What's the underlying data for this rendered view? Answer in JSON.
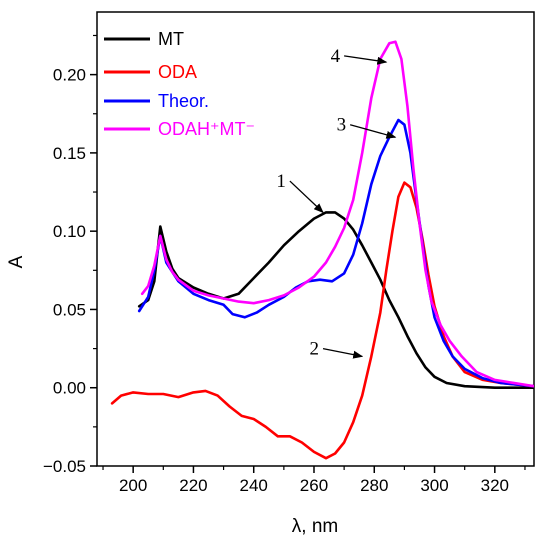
{
  "chart_data": {
    "type": "line",
    "title": "",
    "xlabel": "λ, nm",
    "ylabel": "A",
    "xlim": [
      188,
      333
    ],
    "ylim": [
      -0.05,
      0.24
    ],
    "x_ticks": [
      200,
      220,
      240,
      260,
      280,
      300,
      320
    ],
    "y_ticks": [
      -0.05,
      0.0,
      0.05,
      0.1,
      0.15,
      0.2
    ],
    "x_tick_labels": [
      "200",
      "220",
      "240",
      "260",
      "280",
      "300",
      "320"
    ],
    "y_tick_labels": [
      "−0.05",
      "0.00",
      "0.05",
      "0.10",
      "0.15",
      "0.20"
    ],
    "grid": false,
    "legend_position": "top-left",
    "series": [
      {
        "name": "MT",
        "color": "#000000",
        "points": [
          [
            202,
            0.052
          ],
          [
            205,
            0.056
          ],
          [
            207,
            0.068
          ],
          [
            209,
            0.103
          ],
          [
            211,
            0.087
          ],
          [
            213,
            0.076
          ],
          [
            215,
            0.07
          ],
          [
            220,
            0.064
          ],
          [
            225,
            0.06
          ],
          [
            230,
            0.057
          ],
          [
            235,
            0.06
          ],
          [
            240,
            0.07
          ],
          [
            245,
            0.08
          ],
          [
            250,
            0.091
          ],
          [
            255,
            0.1
          ],
          [
            260,
            0.108
          ],
          [
            264,
            0.112
          ],
          [
            267,
            0.112
          ],
          [
            270,
            0.108
          ],
          [
            273,
            0.101
          ],
          [
            276,
            0.091
          ],
          [
            279,
            0.08
          ],
          [
            282,
            0.069
          ],
          [
            285,
            0.056
          ],
          [
            288,
            0.045
          ],
          [
            291,
            0.033
          ],
          [
            294,
            0.022
          ],
          [
            297,
            0.013
          ],
          [
            300,
            0.007
          ],
          [
            304,
            0.003
          ],
          [
            310,
            0.001
          ],
          [
            320,
            0.0
          ],
          [
            333,
            0.0
          ]
        ]
      },
      {
        "name": "ODA",
        "color": "#ff0000",
        "points": [
          [
            193,
            -0.01
          ],
          [
            196,
            -0.005
          ],
          [
            200,
            -0.003
          ],
          [
            205,
            -0.004
          ],
          [
            210,
            -0.004
          ],
          [
            215,
            -0.006
          ],
          [
            220,
            -0.003
          ],
          [
            224,
            -0.002
          ],
          [
            228,
            -0.005
          ],
          [
            232,
            -0.012
          ],
          [
            236,
            -0.018
          ],
          [
            240,
            -0.02
          ],
          [
            244,
            -0.025
          ],
          [
            248,
            -0.031
          ],
          [
            252,
            -0.031
          ],
          [
            256,
            -0.035
          ],
          [
            260,
            -0.041
          ],
          [
            264,
            -0.045
          ],
          [
            267,
            -0.042
          ],
          [
            270,
            -0.035
          ],
          [
            273,
            -0.022
          ],
          [
            276,
            -0.005
          ],
          [
            279,
            0.02
          ],
          [
            282,
            0.048
          ],
          [
            284,
            0.075
          ],
          [
            286,
            0.1
          ],
          [
            288,
            0.122
          ],
          [
            290,
            0.131
          ],
          [
            292,
            0.128
          ],
          [
            294,
            0.115
          ],
          [
            296,
            0.095
          ],
          [
            298,
            0.072
          ],
          [
            300,
            0.052
          ],
          [
            303,
            0.033
          ],
          [
            306,
            0.02
          ],
          [
            310,
            0.01
          ],
          [
            316,
            0.005
          ],
          [
            322,
            0.003
          ],
          [
            333,
            0.001
          ]
        ]
      },
      {
        "name": "Theor.",
        "color": "#0000ff",
        "points": [
          [
            202,
            0.049
          ],
          [
            205,
            0.058
          ],
          [
            207,
            0.075
          ],
          [
            209,
            0.097
          ],
          [
            211,
            0.08
          ],
          [
            213,
            0.074
          ],
          [
            215,
            0.068
          ],
          [
            220,
            0.06
          ],
          [
            225,
            0.056
          ],
          [
            230,
            0.053
          ],
          [
            233,
            0.047
          ],
          [
            237,
            0.045
          ],
          [
            241,
            0.048
          ],
          [
            245,
            0.053
          ],
          [
            250,
            0.058
          ],
          [
            254,
            0.064
          ],
          [
            258,
            0.068
          ],
          [
            262,
            0.069
          ],
          [
            266,
            0.068
          ],
          [
            270,
            0.073
          ],
          [
            273,
            0.085
          ],
          [
            276,
            0.105
          ],
          [
            279,
            0.13
          ],
          [
            282,
            0.148
          ],
          [
            285,
            0.16
          ],
          [
            288,
            0.171
          ],
          [
            290,
            0.168
          ],
          [
            292,
            0.15
          ],
          [
            294,
            0.12
          ],
          [
            296,
            0.092
          ],
          [
            298,
            0.065
          ],
          [
            300,
            0.045
          ],
          [
            303,
            0.03
          ],
          [
            306,
            0.02
          ],
          [
            310,
            0.012
          ],
          [
            316,
            0.006
          ],
          [
            322,
            0.003
          ],
          [
            333,
            0.001
          ]
        ]
      },
      {
        "name": "ODAH⁺MT⁻",
        "color": "#ff00ff",
        "points": [
          [
            203,
            0.06
          ],
          [
            205,
            0.065
          ],
          [
            207,
            0.078
          ],
          [
            209,
            0.097
          ],
          [
            211,
            0.082
          ],
          [
            213,
            0.074
          ],
          [
            215,
            0.069
          ],
          [
            220,
            0.062
          ],
          [
            225,
            0.059
          ],
          [
            230,
            0.057
          ],
          [
            235,
            0.055
          ],
          [
            240,
            0.054
          ],
          [
            245,
            0.056
          ],
          [
            250,
            0.059
          ],
          [
            255,
            0.064
          ],
          [
            260,
            0.071
          ],
          [
            264,
            0.08
          ],
          [
            267,
            0.09
          ],
          [
            270,
            0.102
          ],
          [
            273,
            0.12
          ],
          [
            276,
            0.15
          ],
          [
            279,
            0.185
          ],
          [
            282,
            0.21
          ],
          [
            285,
            0.22
          ],
          [
            287,
            0.221
          ],
          [
            289,
            0.21
          ],
          [
            291,
            0.18
          ],
          [
            293,
            0.14
          ],
          [
            295,
            0.105
          ],
          [
            297,
            0.075
          ],
          [
            299,
            0.055
          ],
          [
            302,
            0.04
          ],
          [
            305,
            0.03
          ],
          [
            309,
            0.02
          ],
          [
            314,
            0.01
          ],
          [
            320,
            0.005
          ],
          [
            333,
            0.001
          ]
        ]
      }
    ],
    "annotations": [
      {
        "label": "1",
        "tail": [
          252,
          0.132
        ],
        "head": [
          263,
          0.112
        ]
      },
      {
        "label": "2",
        "tail": [
          263,
          0.025
        ],
        "head": [
          276,
          0.02
        ]
      },
      {
        "label": "3",
        "tail": [
          272,
          0.168
        ],
        "head": [
          287,
          0.16
        ]
      },
      {
        "label": "4",
        "tail": [
          270,
          0.212
        ],
        "head": [
          284,
          0.208
        ]
      }
    ]
  }
}
